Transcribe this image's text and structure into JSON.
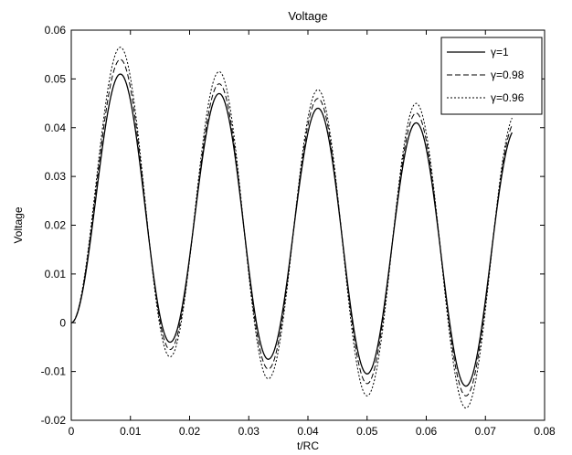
{
  "chart_data": {
    "type": "line",
    "title": "Voltage",
    "xlabel": "t/RC",
    "ylabel": "Voltage",
    "xlim": [
      0,
      0.08
    ],
    "ylim": [
      -0.02,
      0.06
    ],
    "xticks": [
      "0",
      "0.01",
      "0.02",
      "0.03",
      "0.04",
      "0.05",
      "0.06",
      "0.07",
      "0.08"
    ],
    "yticks": [
      "-0.02",
      "-0.01",
      "0",
      "0.01",
      "0.02",
      "0.03",
      "0.04",
      "0.05",
      "0.06"
    ],
    "grid": false,
    "legend_position": "top-right",
    "x": [
      0,
      0.0083,
      0.0167,
      0.025,
      0.0333,
      0.0417,
      0.05,
      0.0583,
      0.0667,
      0.0745
    ],
    "series": [
      {
        "name": "γ=1",
        "style": "solid",
        "values": [
          0,
          0.051,
          -0.004,
          0.047,
          -0.0075,
          0.044,
          -0.0105,
          0.041,
          -0.013,
          0.039
        ]
      },
      {
        "name": "γ=0.98",
        "style": "dashed",
        "values": [
          0,
          0.054,
          -0.0055,
          0.049,
          -0.0095,
          0.046,
          -0.0125,
          0.043,
          -0.015,
          0.0405
        ]
      },
      {
        "name": "γ=0.96",
        "style": "dotted",
        "values": [
          0,
          0.0565,
          -0.007,
          0.0515,
          -0.0115,
          0.0478,
          -0.015,
          0.045,
          -0.0175,
          0.042
        ]
      }
    ]
  }
}
